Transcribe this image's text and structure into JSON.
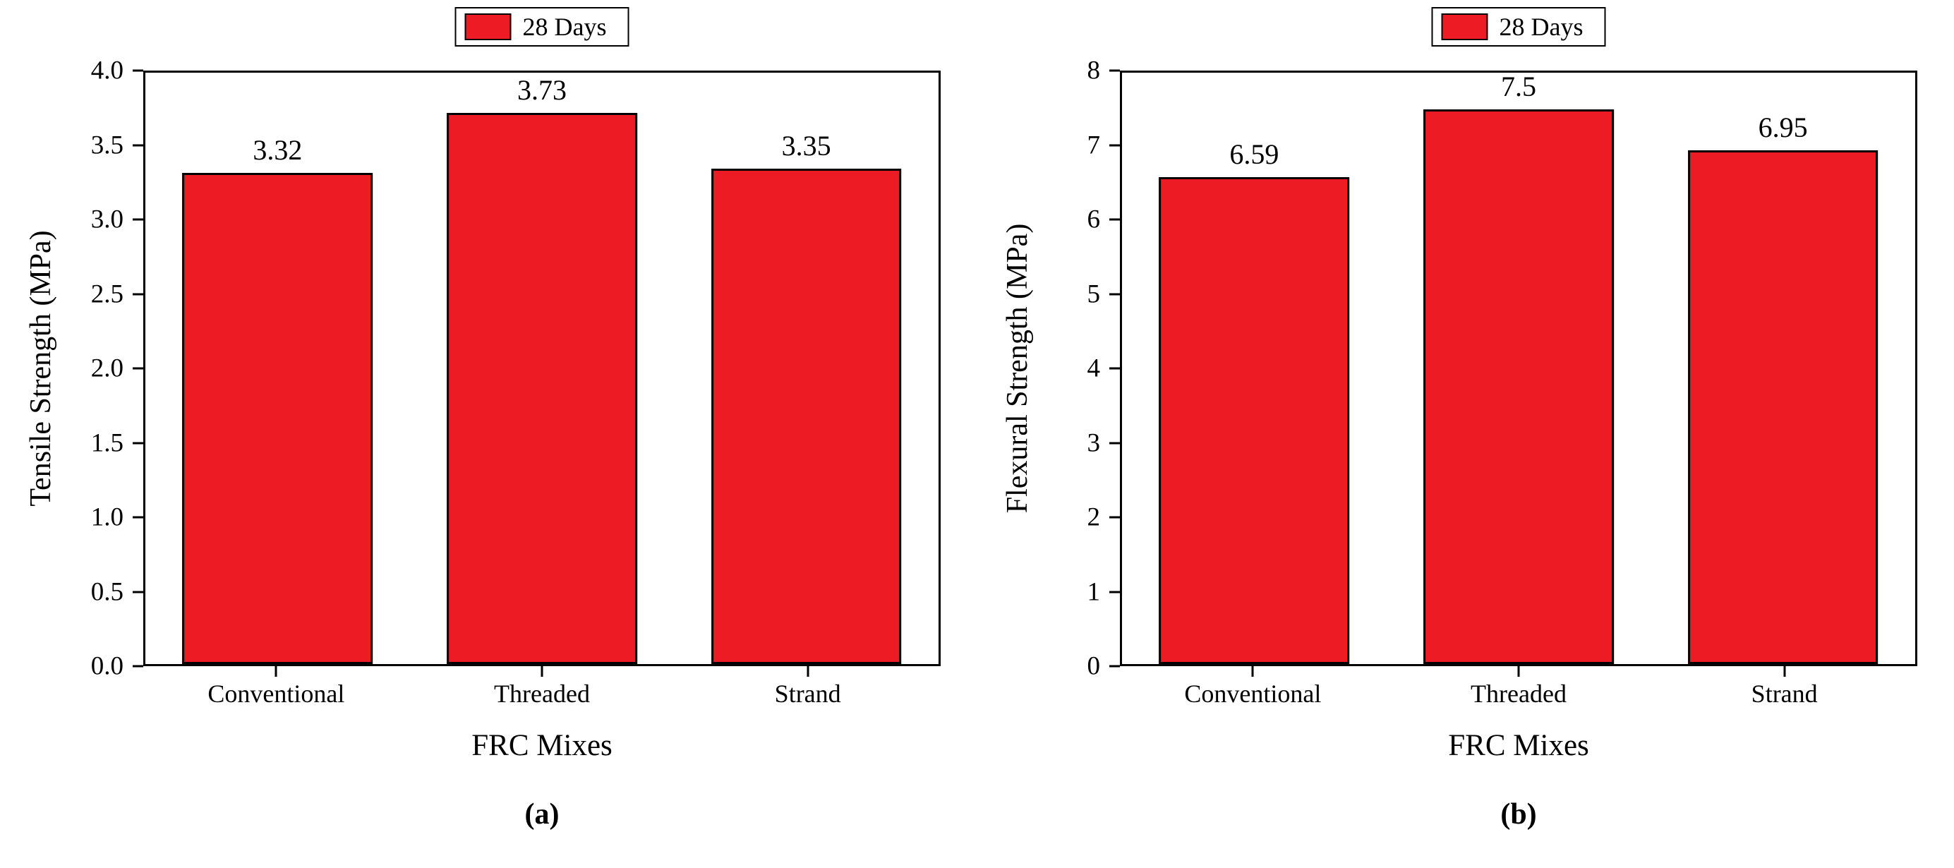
{
  "figure": {
    "background": "#ffffff"
  },
  "chart_data": [
    {
      "type": "bar",
      "title": "",
      "categories": [
        "Conventional",
        "Threaded",
        "Strand"
      ],
      "values": [
        3.32,
        3.73,
        3.35
      ],
      "value_labels": [
        "3.32",
        "3.73",
        "3.35"
      ],
      "xlabel": "FRC Mixes",
      "ylabel": "Tensile Strength (MPa)",
      "ylim": [
        0,
        4
      ],
      "yticks": [
        "4.0",
        "3.5",
        "3.0",
        "2.5",
        "2.0",
        "1.5",
        "1.0",
        "0.5",
        "0.0"
      ],
      "legend": {
        "label": "28 Days",
        "color": "#ed1c24",
        "position": "top-center"
      },
      "caption": "(a)",
      "bar_color": "#ed1c24",
      "bar_border_color": "#000000",
      "grid": false
    },
    {
      "type": "bar",
      "title": "",
      "categories": [
        "Conventional",
        "Threaded",
        "Strand"
      ],
      "values": [
        6.59,
        7.5,
        6.95
      ],
      "value_labels": [
        "6.59",
        "7.5",
        "6.95"
      ],
      "xlabel": "FRC Mixes",
      "ylabel": "Flexural Strength (MPa)",
      "ylim": [
        0,
        8
      ],
      "yticks": [
        "8",
        "7",
        "6",
        "5",
        "4",
        "3",
        "2",
        "1",
        "0"
      ],
      "legend": {
        "label": "28 Days",
        "color": "#ed1c24",
        "position": "top-center"
      },
      "caption": "(b)",
      "bar_color": "#ed1c24",
      "bar_border_color": "#000000",
      "grid": false
    }
  ]
}
